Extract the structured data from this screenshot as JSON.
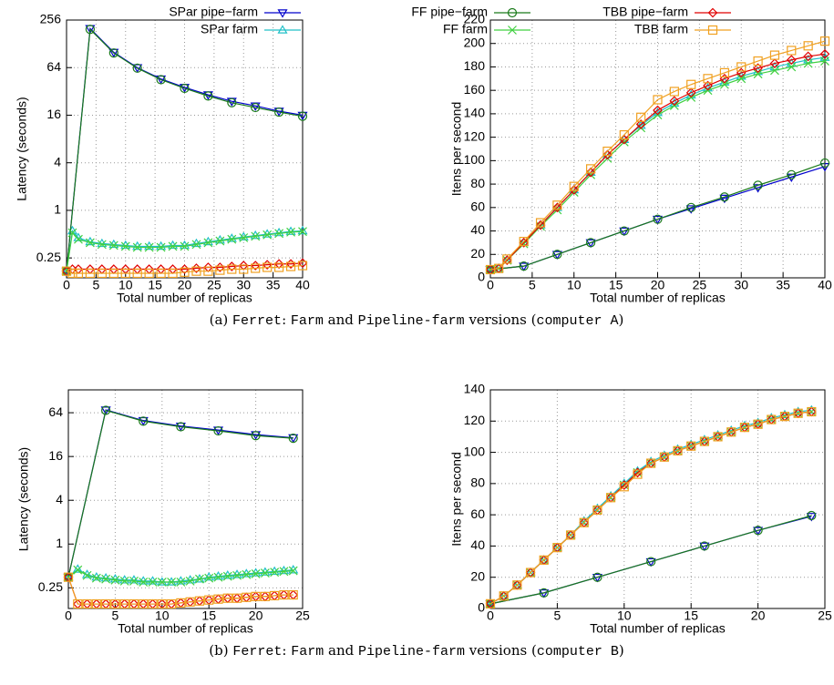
{
  "legend": [
    {
      "name": "SPar pipe−farm",
      "color": "#0000cc",
      "marker": "tri-down"
    },
    {
      "name": "SPar farm",
      "color": "#20c0c8",
      "marker": "tri-up"
    },
    {
      "name": "FF pipe−farm",
      "color": "#1a7a1a",
      "marker": "circle"
    },
    {
      "name": "FF farm",
      "color": "#40d040",
      "marker": "cross"
    },
    {
      "name": "TBB pipe−farm",
      "color": "#e00000",
      "marker": "diamond"
    },
    {
      "name": "TBB farm",
      "color": "#f0a020",
      "marker": "square"
    }
  ],
  "captions": [
    {
      "parts": [
        "(a) ",
        "Ferret",
        ": ",
        "Farm",
        " and ",
        "Pipeline-farm",
        " versions (",
        "computer A",
        ")"
      ]
    },
    {
      "parts": [
        "(b) ",
        "Ferret",
        ": ",
        "Farm",
        " and ",
        "Pipeline-farm",
        " versions (",
        "computer B",
        ")"
      ]
    }
  ],
  "chart_data": [
    {
      "type": "line",
      "xlabel": "Total number of replicas",
      "ylabel": "Latency (seconds)",
      "log_y": true,
      "grid": true,
      "xlim": [
        0,
        40
      ],
      "xticks": [
        0,
        5,
        10,
        15,
        20,
        25,
        30,
        35,
        40
      ],
      "ylim": [
        0.14,
        256
      ],
      "yticks": [
        0.25,
        1,
        4,
        16,
        64,
        256
      ],
      "series": [
        {
          "x": [
            0,
            4,
            8,
            12,
            16,
            20,
            24,
            28,
            32,
            36,
            40
          ],
          "values": [
            0.17,
            200,
            100,
            64,
            46,
            36,
            29,
            24,
            21,
            18,
            16
          ]
        },
        {
          "x": [
            0,
            1,
            2,
            4,
            6,
            8,
            10,
            12,
            14,
            16,
            18,
            20,
            22,
            24,
            26,
            28,
            30,
            32,
            34,
            36,
            38,
            40
          ],
          "values": [
            0.17,
            0.55,
            0.45,
            0.4,
            0.38,
            0.37,
            0.36,
            0.35,
            0.35,
            0.35,
            0.36,
            0.36,
            0.38,
            0.4,
            0.42,
            0.44,
            0.46,
            0.48,
            0.5,
            0.52,
            0.54,
            0.55
          ]
        },
        {
          "x": [
            0,
            4,
            8,
            12,
            16,
            20,
            24,
            28,
            32,
            36,
            40
          ],
          "values": [
            0.17,
            195,
            98,
            63,
            45,
            35,
            28,
            23,
            20,
            17.5,
            15.5
          ]
        },
        {
          "x": [
            0,
            1,
            2,
            4,
            6,
            8,
            10,
            12,
            14,
            16,
            18,
            20,
            22,
            24,
            26,
            28,
            30,
            32,
            34,
            36,
            38,
            40
          ],
          "values": [
            0.17,
            0.52,
            0.43,
            0.39,
            0.37,
            0.36,
            0.35,
            0.34,
            0.34,
            0.34,
            0.35,
            0.35,
            0.37,
            0.39,
            0.41,
            0.43,
            0.45,
            0.47,
            0.49,
            0.51,
            0.53,
            0.54
          ]
        },
        {
          "x": [
            0,
            1,
            2,
            4,
            6,
            8,
            10,
            12,
            14,
            16,
            18,
            20,
            22,
            24,
            26,
            28,
            30,
            32,
            34,
            36,
            38,
            40
          ],
          "values": [
            0.17,
            0.18,
            0.18,
            0.18,
            0.18,
            0.18,
            0.18,
            0.18,
            0.18,
            0.18,
            0.18,
            0.18,
            0.185,
            0.19,
            0.19,
            0.195,
            0.2,
            0.2,
            0.205,
            0.21,
            0.21,
            0.215
          ]
        },
        {
          "x": [
            0,
            1,
            2,
            4,
            6,
            8,
            10,
            12,
            14,
            16,
            18,
            20,
            22,
            24,
            26,
            28,
            30,
            32,
            34,
            36,
            38,
            40
          ],
          "values": [
            0.17,
            0.16,
            0.16,
            0.16,
            0.16,
            0.16,
            0.16,
            0.16,
            0.16,
            0.16,
            0.16,
            0.165,
            0.17,
            0.17,
            0.175,
            0.18,
            0.18,
            0.185,
            0.19,
            0.19,
            0.195,
            0.2
          ]
        }
      ]
    },
    {
      "type": "line",
      "xlabel": "Total number of replicas",
      "ylabel": "Itens per second",
      "log_y": false,
      "grid": true,
      "xlim": [
        0,
        40
      ],
      "xticks": [
        0,
        5,
        10,
        15,
        20,
        25,
        30,
        35,
        40
      ],
      "ylim": [
        0,
        220
      ],
      "yticks": [
        0,
        20,
        40,
        60,
        80,
        100,
        120,
        140,
        160,
        180,
        200,
        220
      ],
      "series": [
        {
          "x": [
            0,
            4,
            8,
            12,
            16,
            20,
            24,
            28,
            32,
            36,
            40
          ],
          "values": [
            7,
            10,
            20,
            30,
            40,
            50,
            59,
            68,
            77,
            86,
            95
          ]
        },
        {
          "x": [
            0,
            1,
            2,
            4,
            6,
            8,
            10,
            12,
            14,
            16,
            18,
            20,
            22,
            24,
            26,
            28,
            30,
            32,
            34,
            36,
            38,
            40
          ],
          "values": [
            7,
            8,
            15,
            30,
            45,
            60,
            75,
            90,
            105,
            118,
            130,
            141,
            149,
            156,
            162,
            167,
            172,
            176,
            180,
            183,
            186,
            188
          ]
        },
        {
          "x": [
            0,
            4,
            8,
            12,
            16,
            20,
            24,
            28,
            32,
            36,
            40
          ],
          "values": [
            7,
            10,
            20,
            30,
            40,
            50,
            60,
            69,
            79,
            88,
            98
          ]
        },
        {
          "x": [
            0,
            1,
            2,
            4,
            6,
            8,
            10,
            12,
            14,
            16,
            18,
            20,
            22,
            24,
            26,
            28,
            30,
            32,
            34,
            36,
            38,
            40
          ],
          "values": [
            7,
            8,
            15,
            29,
            44,
            58,
            73,
            88,
            102,
            116,
            128,
            139,
            147,
            154,
            160,
            165,
            170,
            174,
            177,
            180,
            183,
            185
          ]
        },
        {
          "x": [
            0,
            1,
            2,
            4,
            6,
            8,
            10,
            12,
            14,
            16,
            18,
            20,
            22,
            24,
            26,
            28,
            30,
            32,
            34,
            36,
            38,
            40
          ],
          "values": [
            7,
            8,
            15,
            30,
            45,
            60,
            75,
            90,
            105,
            118,
            131,
            143,
            151,
            158,
            164,
            170,
            175,
            179,
            183,
            186,
            189,
            191
          ]
        },
        {
          "x": [
            0,
            1,
            2,
            4,
            6,
            8,
            10,
            12,
            14,
            16,
            18,
            20,
            22,
            24,
            26,
            28,
            30,
            32,
            34,
            36,
            38,
            40
          ],
          "values": [
            7,
            8,
            16,
            31,
            47,
            62,
            78,
            93,
            108,
            122,
            137,
            152,
            159,
            165,
            170,
            175,
            180,
            185,
            190,
            194,
            198,
            202
          ]
        }
      ]
    },
    {
      "type": "line",
      "xlabel": "Total number of replicas",
      "ylabel": "Latency (seconds)",
      "log_y": true,
      "grid": true,
      "xlim": [
        0,
        25
      ],
      "xticks": [
        0,
        5,
        10,
        15,
        20,
        25
      ],
      "ylim": [
        0.13,
        132
      ],
      "yticks": [
        0.25,
        1,
        4,
        16,
        64
      ],
      "series": [
        {
          "x": [
            0,
            4,
            8,
            12,
            16,
            20,
            24
          ],
          "values": [
            0.35,
            70,
            50,
            42,
            37,
            32,
            29
          ]
        },
        {
          "x": [
            0,
            1,
            2,
            3,
            4,
            5,
            6,
            7,
            8,
            9,
            10,
            11,
            12,
            13,
            14,
            15,
            16,
            17,
            18,
            19,
            20,
            21,
            22,
            23,
            24
          ],
          "values": [
            0.35,
            0.45,
            0.38,
            0.35,
            0.34,
            0.33,
            0.32,
            0.32,
            0.31,
            0.31,
            0.3,
            0.3,
            0.31,
            0.32,
            0.33,
            0.35,
            0.36,
            0.37,
            0.38,
            0.39,
            0.4,
            0.41,
            0.42,
            0.43,
            0.44
          ]
        },
        {
          "x": [
            0,
            4,
            8,
            12,
            16,
            20,
            24
          ],
          "values": [
            0.35,
            69,
            49,
            41,
            36,
            31,
            28.5
          ]
        },
        {
          "x": [
            0,
            1,
            2,
            3,
            4,
            5,
            6,
            7,
            8,
            9,
            10,
            11,
            12,
            13,
            14,
            15,
            16,
            17,
            18,
            19,
            20,
            21,
            22,
            23,
            24
          ],
          "values": [
            0.35,
            0.44,
            0.37,
            0.34,
            0.33,
            0.32,
            0.31,
            0.31,
            0.3,
            0.3,
            0.3,
            0.3,
            0.3,
            0.31,
            0.33,
            0.34,
            0.35,
            0.36,
            0.37,
            0.38,
            0.39,
            0.4,
            0.41,
            0.42,
            0.43
          ]
        },
        {
          "x": [
            0,
            1,
            2,
            3,
            4,
            5,
            6,
            7,
            8,
            9,
            10,
            11,
            12,
            13,
            14,
            15,
            16,
            17,
            18,
            19,
            20,
            21,
            22,
            23,
            24
          ],
          "values": [
            0.35,
            0.15,
            0.15,
            0.15,
            0.15,
            0.15,
            0.15,
            0.15,
            0.15,
            0.15,
            0.15,
            0.15,
            0.155,
            0.16,
            0.165,
            0.17,
            0.175,
            0.18,
            0.18,
            0.185,
            0.19,
            0.19,
            0.195,
            0.2,
            0.2
          ]
        },
        {
          "x": [
            0,
            1,
            2,
            3,
            4,
            5,
            6,
            7,
            8,
            9,
            10,
            11,
            12,
            13,
            14,
            15,
            16,
            17,
            18,
            19,
            20,
            21,
            22,
            23,
            24
          ],
          "values": [
            0.35,
            0.15,
            0.15,
            0.15,
            0.15,
            0.15,
            0.15,
            0.15,
            0.15,
            0.15,
            0.15,
            0.15,
            0.155,
            0.16,
            0.165,
            0.17,
            0.175,
            0.18,
            0.18,
            0.185,
            0.19,
            0.19,
            0.195,
            0.2,
            0.2
          ]
        }
      ]
    },
    {
      "type": "line",
      "xlabel": "Total number of replicas",
      "ylabel": "Itens per second",
      "log_y": false,
      "grid": true,
      "xlim": [
        0,
        25
      ],
      "xticks": [
        0,
        5,
        10,
        15,
        20,
        25
      ],
      "ylim": [
        0,
        140
      ],
      "yticks": [
        0,
        20,
        40,
        60,
        80,
        100,
        120,
        140
      ],
      "series": [
        {
          "x": [
            0,
            4,
            8,
            12,
            16,
            20,
            24
          ],
          "values": [
            3,
            10,
            20,
            30,
            40,
            50,
            59
          ]
        },
        {
          "x": [
            0,
            1,
            2,
            3,
            4,
            5,
            6,
            7,
            8,
            9,
            10,
            11,
            12,
            13,
            14,
            15,
            16,
            17,
            18,
            19,
            20,
            21,
            22,
            23,
            24
          ],
          "values": [
            3,
            8,
            15,
            23,
            31,
            39,
            47,
            56,
            64,
            72,
            80,
            88,
            94,
            98,
            102,
            105,
            108,
            111,
            114,
            117,
            119,
            122,
            124,
            126,
            127
          ]
        },
        {
          "x": [
            0,
            4,
            8,
            12,
            16,
            20,
            24
          ],
          "values": [
            3,
            10,
            20,
            30,
            40,
            50,
            59.5
          ]
        },
        {
          "x": [
            0,
            1,
            2,
            3,
            4,
            5,
            6,
            7,
            8,
            9,
            10,
            11,
            12,
            13,
            14,
            15,
            16,
            17,
            18,
            19,
            20,
            21,
            22,
            23,
            24
          ],
          "values": [
            3,
            8,
            15,
            23,
            31,
            39,
            47,
            55,
            63,
            71,
            79,
            87,
            93,
            97,
            101,
            104,
            107,
            110,
            113,
            116,
            118,
            121,
            123,
            125,
            126
          ]
        },
        {
          "x": [
            0,
            1,
            2,
            3,
            4,
            5,
            6,
            7,
            8,
            9,
            10,
            11,
            12,
            13,
            14,
            15,
            16,
            17,
            18,
            19,
            20,
            21,
            22,
            23,
            24
          ],
          "values": [
            3,
            8,
            15,
            23,
            31,
            39,
            47,
            55,
            63,
            71,
            79,
            87,
            93,
            97,
            101,
            104,
            107,
            110,
            113,
            116,
            118,
            121,
            123,
            125,
            126
          ]
        },
        {
          "x": [
            0,
            1,
            2,
            3,
            4,
            5,
            6,
            7,
            8,
            9,
            10,
            11,
            12,
            13,
            14,
            15,
            16,
            17,
            18,
            19,
            20,
            21,
            22,
            23,
            24
          ],
          "values": [
            3,
            8,
            15,
            23,
            31,
            39,
            47,
            55,
            63,
            71,
            78,
            86,
            93,
            97,
            101,
            104,
            107,
            110,
            113,
            116,
            118,
            121,
            123,
            125,
            126
          ]
        }
      ]
    }
  ]
}
